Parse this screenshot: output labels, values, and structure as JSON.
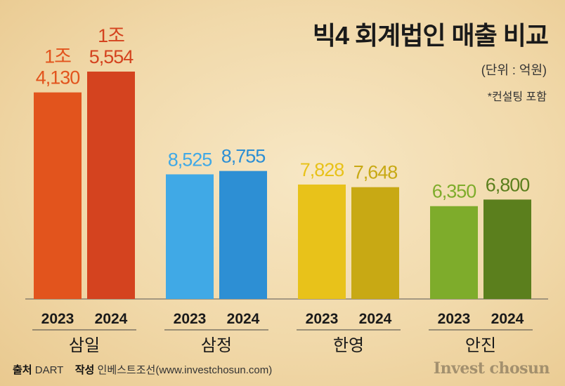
{
  "header": {
    "title": "빅4 회계법인 매출 비교",
    "unit": "(단위 : 억원)",
    "note": "*컨설팅 포함"
  },
  "footer": {
    "source_label": "출처",
    "source_value": "DART",
    "author_label": "작성",
    "author_value": "인베스트조선(www.investchosun.com)",
    "brand": "Invest chosun"
  },
  "chart_data": {
    "type": "bar",
    "title": "빅4 회계법인 매출 비교",
    "unit": "억원",
    "ylim": [
      0,
      16000
    ],
    "groups": [
      {
        "name": "삼일",
        "colors": [
          "#e2541d",
          "#d4431f"
        ],
        "bars": [
          {
            "year": "2023",
            "value": 14130,
            "label_lines": [
              "1조",
              "4,130"
            ]
          },
          {
            "year": "2024",
            "value": 15554,
            "label_lines": [
              "1조",
              "5,554"
            ]
          }
        ]
      },
      {
        "name": "삼정",
        "colors": [
          "#40a9e6",
          "#2d8fd4"
        ],
        "bars": [
          {
            "year": "2023",
            "value": 8525,
            "label_lines": [
              "8,525"
            ]
          },
          {
            "year": "2024",
            "value": 8755,
            "label_lines": [
              "8,755"
            ]
          }
        ]
      },
      {
        "name": "한영",
        "colors": [
          "#e8c21a",
          "#c8a914"
        ],
        "bars": [
          {
            "year": "2023",
            "value": 7828,
            "label_lines": [
              "7,828"
            ]
          },
          {
            "year": "2024",
            "value": 7648,
            "label_lines": [
              "7,648"
            ]
          }
        ]
      },
      {
        "name": "안진",
        "colors": [
          "#7eac2b",
          "#5b7f1d"
        ],
        "bars": [
          {
            "year": "2023",
            "value": 6350,
            "label_lines": [
              "6,350"
            ]
          },
          {
            "year": "2024",
            "value": 6800,
            "label_lines": [
              "6,800"
            ]
          }
        ]
      }
    ]
  }
}
